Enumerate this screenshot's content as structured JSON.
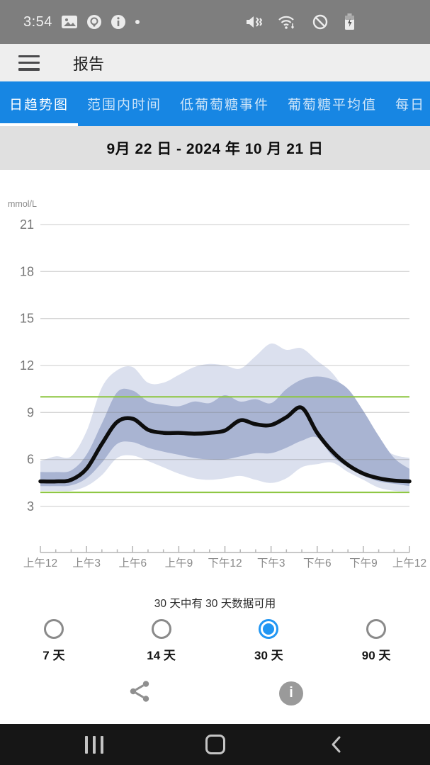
{
  "status_bar": {
    "time": "3:54",
    "left_icons": [
      "image-icon",
      "screen-record-icon",
      "info-status-icon",
      "notification-dot"
    ],
    "right_icons": [
      "vibrate-icon",
      "wifi-icon",
      "blocked-icon",
      "battery-charging-icon"
    ]
  },
  "app_bar": {
    "title": "报告",
    "menu_icon": "hamburger-icon"
  },
  "tabs": {
    "items": [
      {
        "label": "日趋势图",
        "selected": true
      },
      {
        "label": "范围内时间",
        "selected": false
      },
      {
        "label": "低葡萄糖事件",
        "selected": false
      },
      {
        "label": "葡萄糖平均值",
        "selected": false
      },
      {
        "label": "每日",
        "selected": false
      }
    ]
  },
  "report": {
    "date_range": "9月 22 日 - 2024 年 10 月 21 日"
  },
  "chart_data": {
    "type": "area",
    "ylabel": "mmol/L",
    "ylim": [
      3,
      21
    ],
    "y_ticks": [
      3,
      6,
      9,
      12,
      15,
      18,
      21
    ],
    "x_hours": [
      0,
      1,
      2,
      3,
      4,
      5,
      6,
      7,
      8,
      9,
      10,
      11,
      12,
      13,
      14,
      15,
      16,
      17,
      18,
      19,
      20,
      21,
      22,
      23,
      24
    ],
    "x_tick_hours": [
      0,
      3,
      6,
      9,
      12,
      15,
      18,
      21,
      24
    ],
    "x_tick_labels": [
      "上午12",
      "上午3",
      "上午6",
      "上午9",
      "下午12",
      "下午3",
      "下午6",
      "下午9",
      "上午12"
    ],
    "target_range": {
      "low_mmol": 3.9,
      "high_mmol": 10,
      "line_color": "#8cc63f"
    },
    "series": [
      {
        "name": "p90",
        "values": [
          5.9,
          6.2,
          6.2,
          7.8,
          10.6,
          11.7,
          11.9,
          10.9,
          10.9,
          11.4,
          11.9,
          12.1,
          12.0,
          11.8,
          12.6,
          13.4,
          13.0,
          13.1,
          12.3,
          11.5,
          10.1,
          8.3,
          6.9,
          6.3,
          6.1
        ]
      },
      {
        "name": "p75",
        "values": [
          5.2,
          5.2,
          5.3,
          6.3,
          8.3,
          10.3,
          10.4,
          9.7,
          9.5,
          9.4,
          9.7,
          9.6,
          10.1,
          9.7,
          9.85,
          9.6,
          10.5,
          11.1,
          11.3,
          11.1,
          10.5,
          9.1,
          7.5,
          6.1,
          5.4
        ]
      },
      {
        "name": "median",
        "values": [
          4.6,
          4.6,
          4.7,
          5.4,
          7.0,
          8.4,
          8.6,
          7.9,
          7.7,
          7.7,
          7.65,
          7.7,
          7.85,
          8.5,
          8.25,
          8.2,
          8.7,
          9.3,
          7.7,
          6.5,
          5.65,
          5.1,
          4.8,
          4.65,
          4.6
        ]
      },
      {
        "name": "p25",
        "values": [
          4.3,
          4.3,
          4.35,
          4.8,
          5.8,
          7.0,
          7.1,
          6.75,
          6.5,
          6.3,
          6.1,
          6.0,
          6.0,
          6.2,
          6.4,
          6.4,
          6.75,
          7.2,
          7.4,
          6.2,
          5.5,
          4.95,
          4.6,
          4.45,
          4.3
        ]
      },
      {
        "name": "p10",
        "values": [
          4.0,
          4.0,
          4.0,
          4.3,
          5.0,
          6.1,
          6.25,
          5.9,
          5.5,
          5.1,
          4.8,
          4.7,
          4.8,
          4.95,
          4.7,
          4.5,
          4.8,
          5.5,
          5.7,
          5.8,
          5.2,
          4.7,
          4.2,
          4.0,
          3.95
        ]
      }
    ],
    "style": {
      "outer_band_fill": "#dbe0ee",
      "inner_band_fill": "#a9b4d2",
      "median_color": "#0d0d0d",
      "grid": true,
      "legend": false
    }
  },
  "availability": {
    "text": "30 天中有 30 天数据可用"
  },
  "range_options": {
    "items": [
      {
        "label": "7 天",
        "selected": false
      },
      {
        "label": "14 天",
        "selected": false
      },
      {
        "label": "30 天",
        "selected": true
      },
      {
        "label": "90 天",
        "selected": false
      }
    ]
  },
  "footer": {
    "icons": [
      "share-icon",
      "info-icon"
    ]
  },
  "nav_bar": {
    "icons": [
      "recent-apps-icon",
      "home-icon",
      "back-icon"
    ]
  },
  "theme": {
    "tab_bar_blue": "#1786e3",
    "radio_selected_blue": "#2196f3",
    "target_line_green": "#8cc63f",
    "status_bar_gray": "#7e7e7e"
  }
}
